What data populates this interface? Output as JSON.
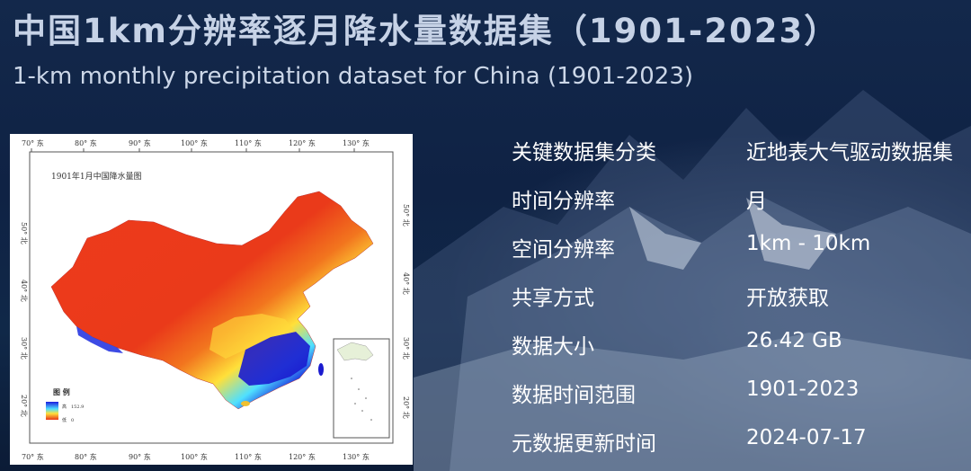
{
  "header": {
    "title_cn": "中国1km分辨率逐月降水量数据集（1901-2023）",
    "title_en": "1-km monthly precipitation dataset for China (1901-2023)"
  },
  "map": {
    "caption": "1901年1月中国降水量图",
    "lon_ticks": [
      "70° 东",
      "80° 东",
      "90° 东",
      "100° 东",
      "110° 东",
      "120° 东",
      "130° 东"
    ],
    "lat_ticks": [
      "50° 北",
      "40° 北",
      "30° 北",
      "20° 北"
    ],
    "legend": {
      "title": "图 例",
      "high_label": "高",
      "high_value": "152.9",
      "low_label": "低",
      "low_value": "0"
    },
    "colors": {
      "high": "#1a1adf",
      "mid": "#ffe33a",
      "low": "#e8361a"
    }
  },
  "info": {
    "rows": [
      {
        "key": "关键数据集分类",
        "value": "近地表大气驱动数据集"
      },
      {
        "key": "时间分辨率",
        "value": "月"
      },
      {
        "key": "空间分辨率",
        "value": "1km - 10km"
      },
      {
        "key": "共享方式",
        "value": "开放获取"
      },
      {
        "key": "数据大小",
        "value": "26.42 GB"
      },
      {
        "key": "数据时间范围",
        "value": "1901-2023"
      },
      {
        "key": "元数据更新时间",
        "value": "2024-07-17"
      }
    ]
  }
}
